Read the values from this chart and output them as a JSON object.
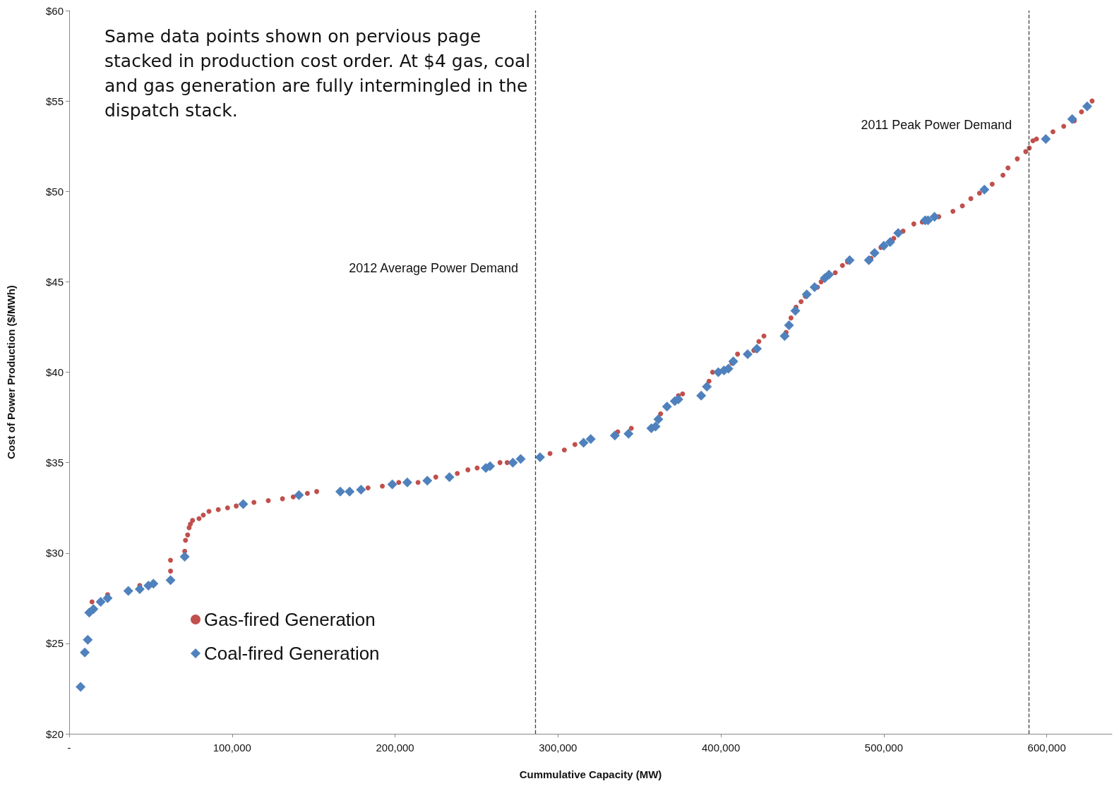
{
  "chart_data": {
    "type": "scatter",
    "xlabel": "Cummulative Capacity (MW)",
    "ylabel": "Cost of Power Production ($/MWh)",
    "annotations": [
      "Same data points shown on pervious page stacked in production cost order.  At $4 gas, coal and gas generation are fully intermingled in the dispatch stack."
    ],
    "xlim": [
      0,
      640000
    ],
    "xticks": [
      {
        "value": 0,
        "label": "-"
      },
      {
        "value": 100000,
        "label": "100,000"
      },
      {
        "value": 200000,
        "label": "200,000"
      },
      {
        "value": 300000,
        "label": "300,000"
      },
      {
        "value": 400000,
        "label": "400,000"
      },
      {
        "value": 500000,
        "label": "500,000"
      },
      {
        "value": 600000,
        "label": "600,000"
      }
    ],
    "ylim": [
      20,
      60
    ],
    "yticks": [
      {
        "value": 20,
        "label": "$20"
      },
      {
        "value": 25,
        "label": "$25"
      },
      {
        "value": 30,
        "label": "$30"
      },
      {
        "value": 35,
        "label": "$35"
      },
      {
        "value": 40,
        "label": "$40"
      },
      {
        "value": 45,
        "label": "$45"
      },
      {
        "value": 50,
        "label": "$50"
      },
      {
        "value": 55,
        "label": "$55"
      },
      {
        "value": 60,
        "label": "$60"
      }
    ],
    "grid": false,
    "legend": "bottom left",
    "ref_lines": [
      {
        "axis": "x",
        "value": 286000,
        "label": "2012 Average Power Demand",
        "color": "#404040",
        "line_style": "dashed"
      },
      {
        "axis": "x",
        "value": 589000,
        "label": "2011 Peak Power Demand",
        "color": "#404040",
        "line_style": "dashed"
      }
    ],
    "series": [
      {
        "name": "Gas-fired Generation",
        "color": "#c0504d",
        "marker": "circle",
        "x": [
          14000,
          23600,
          43300,
          62200,
          62200,
          70900,
          71400,
          72700,
          73600,
          74400,
          75700,
          79700,
          82300,
          85800,
          91500,
          97200,
          102500,
          113400,
          122200,
          130900,
          137500,
          146200,
          151900,
          183400,
          192200,
          202300,
          214100,
          225000,
          238200,
          244700,
          250400,
          264400,
          268800,
          295100,
          303900,
          310400,
          336700,
          345000,
          363000,
          373900,
          376500,
          392700,
          394900,
          406700,
          410200,
          420200,
          423300,
          426400,
          440000,
          443000,
          446100,
          449200,
          451800,
          459300,
          461500,
          470200,
          474600,
          477700,
          492100,
          498200,
          506100,
          511800,
          518400,
          523600,
          533700,
          542400,
          548200,
          553400,
          558700,
          566500,
          573100,
          576200,
          581900,
          587100,
          589300,
          591500,
          593700,
          603800,
          610400,
          616900,
          621300,
          627800
        ],
        "values": [
          27.3,
          27.7,
          28.2,
          29.6,
          29.0,
          30.1,
          30.7,
          31.0,
          31.4,
          31.6,
          31.8,
          31.9,
          32.1,
          32.3,
          32.4,
          32.5,
          32.6,
          32.8,
          32.9,
          33.0,
          33.1,
          33.3,
          33.4,
          33.6,
          33.7,
          33.9,
          33.9,
          34.2,
          34.4,
          34.6,
          34.7,
          35.0,
          35.0,
          35.5,
          35.7,
          36.0,
          36.7,
          36.9,
          37.7,
          38.7,
          38.8,
          39.5,
          40.0,
          40.5,
          41.0,
          41.2,
          41.7,
          42.0,
          42.2,
          43.0,
          43.6,
          43.9,
          44.2,
          44.7,
          45.0,
          45.5,
          45.9,
          46.1,
          46.3,
          46.9,
          47.4,
          47.8,
          48.2,
          48.3,
          48.6,
          48.9,
          49.2,
          49.6,
          49.9,
          50.4,
          50.9,
          51.3,
          51.8,
          52.2,
          52.4,
          52.8,
          52.9,
          53.3,
          53.6,
          53.9,
          54.4,
          55.0
        ]
      },
      {
        "name": "Coal-fired Generation",
        "color": "#4f81bd",
        "marker": "diamond",
        "x": [
          7000,
          9600,
          11400,
          12300,
          14900,
          19300,
          23600,
          36300,
          43300,
          48600,
          51700,
          62200,
          70900,
          106800,
          141000,
          166400,
          172100,
          179100,
          198300,
          207500,
          219800,
          233400,
          255700,
          258300,
          272300,
          277100,
          289000,
          315700,
          320100,
          334900,
          343300,
          357300,
          359900,
          361600,
          366900,
          371700,
          373900,
          387900,
          391400,
          398400,
          401900,
          404600,
          407600,
          416400,
          422100,
          439100,
          441800,
          445700,
          452700,
          457500,
          463700,
          466300,
          479000,
          490800,
          494300,
          500000,
          503900,
          508800,
          525400,
          527100,
          531100,
          561700,
          599400,
          615600,
          624800
        ],
        "values": [
          22.6,
          24.5,
          25.2,
          26.7,
          26.9,
          27.3,
          27.5,
          27.9,
          28.0,
          28.2,
          28.3,
          28.5,
          29.8,
          32.7,
          33.2,
          33.4,
          33.4,
          33.5,
          33.8,
          33.9,
          34.0,
          34.2,
          34.7,
          34.8,
          35.0,
          35.2,
          35.3,
          36.1,
          36.3,
          36.5,
          36.6,
          36.9,
          37.0,
          37.4,
          38.1,
          38.4,
          38.5,
          38.7,
          39.2,
          40.0,
          40.1,
          40.2,
          40.6,
          41.0,
          41.3,
          42.0,
          42.6,
          43.4,
          44.3,
          44.7,
          45.2,
          45.4,
          46.2,
          46.2,
          46.6,
          47.0,
          47.2,
          47.7,
          48.4,
          48.4,
          48.6,
          50.1,
          52.9,
          54.0,
          54.7
        ]
      }
    ]
  }
}
